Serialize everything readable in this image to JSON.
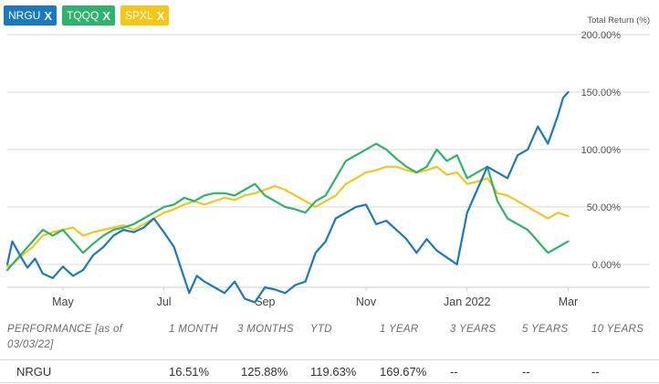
{
  "legend": [
    {
      "ticker": "NRGU",
      "close": "X",
      "color": "#1a7abf"
    },
    {
      "ticker": "TQQQ",
      "close": "X",
      "color": "#2db36b"
    },
    {
      "ticker": "SPXL",
      "close": "X",
      "color": "#f5c518"
    }
  ],
  "chart_data": {
    "type": "line",
    "ylabel": "Total Return (%)",
    "ylim": [
      -20,
      200
    ],
    "yticks": [
      "200.00%",
      "150.00%",
      "100.00%",
      "50.00%",
      "0.00%"
    ],
    "ytick_values": [
      200,
      150,
      100,
      50,
      0
    ],
    "xlabels": [
      "May",
      "Jul",
      "Sep",
      "Nov",
      "Jan 2022",
      "Mar"
    ],
    "xlabel_positions": [
      2.0,
      4.0,
      6.0,
      8.0,
      10.0,
      12.0
    ],
    "xlim": [
      0.9,
      12.1
    ],
    "grid": true,
    "series": [
      {
        "name": "NRGU",
        "color": "#1a7abf",
        "x": [
          0.9,
          1.0,
          1.15,
          1.3,
          1.45,
          1.6,
          1.8,
          2.0,
          2.2,
          2.4,
          2.6,
          2.8,
          3.0,
          3.2,
          3.4,
          3.6,
          3.8,
          4.0,
          4.2,
          4.35,
          4.5,
          4.65,
          4.8,
          5.0,
          5.2,
          5.4,
          5.6,
          5.8,
          6.0,
          6.2,
          6.4,
          6.6,
          6.8,
          7.0,
          7.2,
          7.4,
          7.6,
          7.8,
          8.0,
          8.2,
          8.4,
          8.6,
          8.8,
          9.0,
          9.2,
          9.4,
          9.6,
          9.8,
          10.0,
          10.2,
          10.4,
          10.6,
          10.8,
          11.0,
          11.2,
          11.4,
          11.6,
          11.8,
          11.9,
          12.0
        ],
        "y": [
          0,
          20,
          8,
          -3,
          5,
          -8,
          -12,
          -2,
          -10,
          -5,
          8,
          15,
          25,
          30,
          28,
          32,
          40,
          28,
          15,
          -5,
          -25,
          -10,
          -15,
          -20,
          -25,
          -15,
          -30,
          -33,
          -20,
          -22,
          -25,
          -18,
          -15,
          10,
          20,
          40,
          45,
          50,
          52,
          35,
          38,
          30,
          22,
          10,
          22,
          12,
          6,
          0,
          45,
          65,
          85,
          80,
          75,
          95,
          100,
          120,
          105,
          130,
          145,
          150
        ]
      },
      {
        "name": "TQQQ",
        "color": "#2db36b",
        "x": [
          0.9,
          1.0,
          1.2,
          1.4,
          1.6,
          1.8,
          2.0,
          2.2,
          2.4,
          2.6,
          2.8,
          3.0,
          3.2,
          3.4,
          3.6,
          3.8,
          4.0,
          4.2,
          4.4,
          4.6,
          4.8,
          5.0,
          5.2,
          5.4,
          5.6,
          5.8,
          6.0,
          6.2,
          6.4,
          6.6,
          6.8,
          7.0,
          7.2,
          7.4,
          7.6,
          7.8,
          8.0,
          8.2,
          8.4,
          8.6,
          8.8,
          9.0,
          9.2,
          9.4,
          9.6,
          9.8,
          10.0,
          10.2,
          10.4,
          10.6,
          10.8,
          11.0,
          11.2,
          11.4,
          11.6,
          11.8,
          12.0
        ],
        "y": [
          -5,
          0,
          10,
          20,
          30,
          25,
          30,
          20,
          10,
          18,
          25,
          30,
          32,
          35,
          40,
          45,
          50,
          52,
          58,
          55,
          60,
          62,
          62,
          60,
          65,
          70,
          60,
          55,
          50,
          48,
          45,
          55,
          60,
          75,
          90,
          95,
          100,
          105,
          100,
          92,
          85,
          80,
          85,
          100,
          90,
          95,
          75,
          80,
          85,
          55,
          40,
          35,
          30,
          20,
          10,
          15,
          20
        ]
      },
      {
        "name": "SPXL",
        "color": "#f5c518",
        "x": [
          0.9,
          1.0,
          1.2,
          1.4,
          1.6,
          1.8,
          2.0,
          2.2,
          2.4,
          2.6,
          2.8,
          3.0,
          3.2,
          3.4,
          3.6,
          3.8,
          4.0,
          4.2,
          4.4,
          4.6,
          4.8,
          5.0,
          5.2,
          5.4,
          5.6,
          5.8,
          6.0,
          6.2,
          6.4,
          6.6,
          6.8,
          7.0,
          7.2,
          7.4,
          7.6,
          7.8,
          8.0,
          8.2,
          8.4,
          8.6,
          8.8,
          9.0,
          9.2,
          9.4,
          9.6,
          9.8,
          10.0,
          10.2,
          10.4,
          10.6,
          10.8,
          11.0,
          11.2,
          11.4,
          11.6,
          11.8,
          12.0
        ],
        "y": [
          -2,
          0,
          8,
          15,
          25,
          28,
          30,
          32,
          25,
          28,
          30,
          32,
          34,
          30,
          35,
          40,
          45,
          48,
          52,
          55,
          52,
          55,
          58,
          56,
          60,
          62,
          65,
          68,
          65,
          60,
          55,
          50,
          55,
          60,
          70,
          75,
          80,
          82,
          85,
          85,
          82,
          80,
          82,
          85,
          78,
          80,
          70,
          72,
          75,
          62,
          60,
          55,
          50,
          45,
          40,
          45,
          42
        ]
      }
    ]
  },
  "performance": {
    "header": {
      "label": "PERFORMANCE [as of",
      "label_date": "03/03/22]",
      "m1": "1 MONTH",
      "m3": "3 MONTHS",
      "ytd": "YTD",
      "y1": "1 YEAR",
      "y3": "3 YEARS",
      "y5": "5 YEARS",
      "y10": "10 YEARS"
    },
    "row": {
      "ticker": "NRGU",
      "m1": "16.51%",
      "m3": "125.88%",
      "ytd": "119.63%",
      "y1": "169.67%",
      "y3": "--",
      "y5": "--",
      "y10": "--"
    }
  }
}
